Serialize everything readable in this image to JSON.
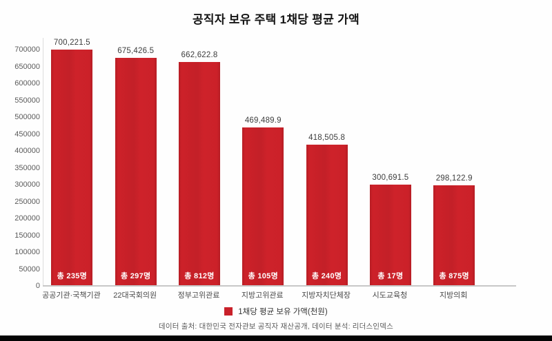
{
  "legend": {
    "label": "1채당 평균 보유 가액(천원)",
    "color": "#C9212A"
  },
  "footer": {
    "source": "데이터 출처: 대한민국 전자관보 공직자 재산공개, 데이터 분석: 리더스인덱스"
  },
  "chart_data": {
    "type": "bar",
    "title": "공직자 보유 주택 1채당 평균 가액",
    "categories": [
      "공공기관·국책기관",
      "22대국회의원",
      "정부고위관료",
      "지방고위관료",
      "지방자치단체장",
      "시도교육청",
      "지방의회"
    ],
    "values": [
      700221.5,
      675426.5,
      662622.8,
      469489.9,
      418505.8,
      300691.5,
      298122.9
    ],
    "value_labels": [
      "700,221.5",
      "675,426.5",
      "662,622.8",
      "469,489.9",
      "418,505.8",
      "300,691.5",
      "298,122.9"
    ],
    "bar_annotations": [
      "총 235명",
      "총 297명",
      "총 812명",
      "총 105명",
      "총 240명",
      "총 17명",
      "총 875명"
    ],
    "legend_entries": [
      "1채당 평균 보유 가액(천원)"
    ],
    "legend_position": "bottom",
    "xlabel": "",
    "ylabel": "",
    "ylim": [
      0,
      700000
    ],
    "ytick_step": 50000,
    "grid": false,
    "bar_color": "#C9212A"
  }
}
